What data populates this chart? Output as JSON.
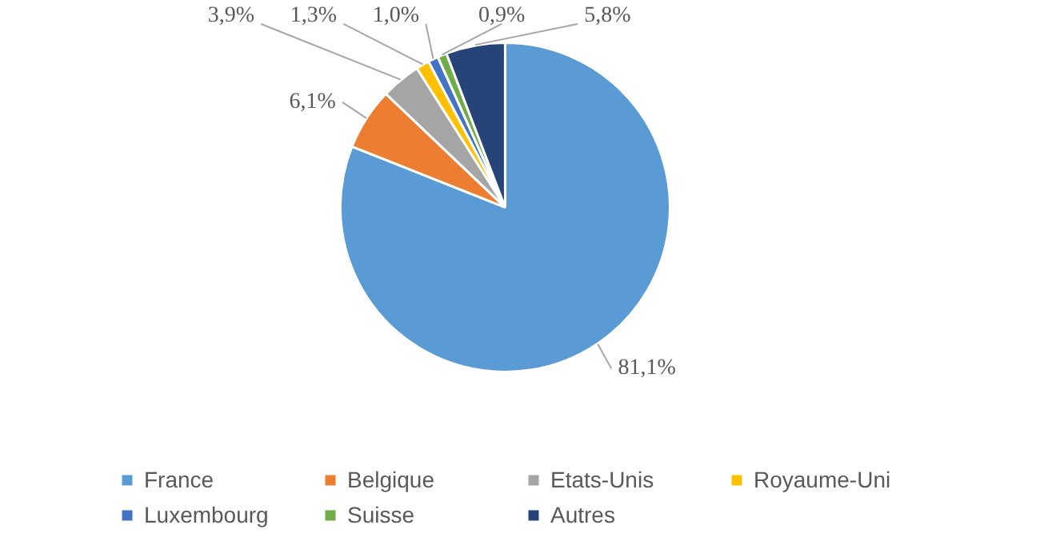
{
  "chart_data": {
    "type": "pie",
    "categories": [
      "France",
      "Belgique",
      "Etats-Unis",
      "Royaume-Uni",
      "Luxembourg",
      "Suisse",
      "Autres"
    ],
    "values": [
      81.1,
      6.1,
      3.9,
      1.3,
      1.0,
      0.9,
      5.8
    ],
    "colors": [
      "#5b9bd5",
      "#ed7d31",
      "#a5a5a5",
      "#ffc000",
      "#4472c4",
      "#70ad47",
      "#264478"
    ],
    "value_labels": [
      "81,1%",
      "6,1%",
      "3,9%",
      "1,3%",
      "1,0%",
      "0,9%",
      "5,8%"
    ],
    "legend": "bottom"
  }
}
